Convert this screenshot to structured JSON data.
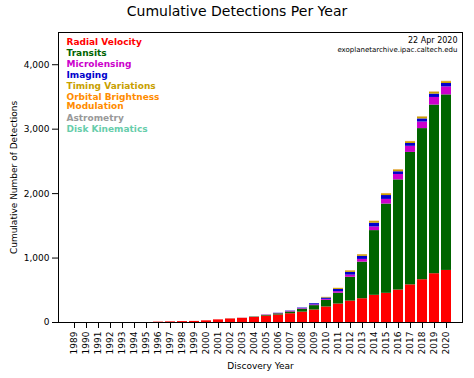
{
  "chart_data": {
    "type": "bar",
    "stacked": true,
    "title": "Cumulative Detections Per Year",
    "xlabel": "Discovery Year",
    "ylabel": "Cumulative Number of Detections",
    "annotations": [
      "22 Apr 2020",
      "exoplanetarchive.ipac.caltech.edu"
    ],
    "categories": [
      "1989",
      "1990",
      "1991",
      "1992",
      "1993",
      "1994",
      "1995",
      "1996",
      "1997",
      "1998",
      "1999",
      "2000",
      "2001",
      "2002",
      "2003",
      "2004",
      "2005",
      "2006",
      "2007",
      "2008",
      "2009",
      "2010",
      "2011",
      "2012",
      "2013",
      "2014",
      "2015",
      "2016",
      "2017",
      "2018",
      "2019",
      "2020"
    ],
    "series": [
      {
        "name": "Radial Velocity",
        "color": "#ff0000",
        "values": [
          0,
          0,
          0,
          0,
          0,
          0,
          0,
          6,
          10,
          14,
          17,
          26,
          41,
          55,
          65,
          79,
          99,
          116,
          136,
          161,
          194,
          241,
          287,
          332,
          369,
          422,
          453,
          504,
          584,
          664,
          757,
          808
        ]
      },
      {
        "name": "Transits",
        "color": "#006400",
        "values": [
          0,
          0,
          0,
          0,
          0,
          0,
          0,
          0,
          0,
          0,
          0,
          0,
          0,
          1,
          1,
          6,
          12,
          19,
          28,
          46,
          68,
          102,
          167,
          370,
          568,
          1004,
          1385,
          1709,
          2055,
          2345,
          2617,
          2724
        ]
      },
      {
        "name": "Microlensing",
        "color": "#cc00cc",
        "values": [
          0,
          0,
          0,
          0,
          0,
          0,
          0,
          0,
          0,
          0,
          0,
          0,
          0,
          0,
          1,
          1,
          5,
          6,
          9,
          9,
          12,
          16,
          25,
          33,
          42,
          57,
          72,
          84,
          95,
          102,
          118,
          124
        ]
      },
      {
        "name": "Imaging",
        "color": "#0000cc",
        "values": [
          0,
          0,
          0,
          0,
          0,
          0,
          0,
          0,
          0,
          0,
          0,
          0,
          0,
          0,
          0,
          0,
          1,
          3,
          5,
          8,
          17,
          21,
          34,
          43,
          48,
          58,
          60,
          42,
          44,
          48,
          52,
          53
        ]
      },
      {
        "name": "Timing Variations",
        "color": "#c8a000",
        "values": [
          0,
          0,
          0,
          0,
          0,
          0,
          0,
          0,
          0,
          0,
          0,
          0,
          0,
          0,
          0,
          0,
          0,
          0,
          0,
          0,
          0,
          10,
          16,
          20,
          22,
          25,
          26,
          26,
          26,
          27,
          27,
          27
        ]
      },
      {
        "name": "Orbital Brightness\nModulation",
        "color": "#ff8c00",
        "values": [
          0,
          0,
          0,
          0,
          0,
          0,
          0,
          0,
          0,
          0,
          0,
          0,
          0,
          0,
          0,
          0,
          0,
          0,
          0,
          0,
          0,
          0,
          2,
          4,
          4,
          5,
          5,
          5,
          5,
          5,
          5,
          5
        ]
      },
      {
        "name": "Astrometry",
        "color": "#999999",
        "values": [
          0,
          0,
          0,
          0,
          0,
          0,
          0,
          0,
          0,
          0,
          0,
          0,
          0,
          0,
          0,
          0,
          0,
          0,
          0,
          0,
          0,
          0,
          0,
          1,
          1,
          1,
          1,
          1,
          1,
          1,
          1,
          1
        ]
      },
      {
        "name": "Disk Kinematics",
        "color": "#66cdaa",
        "values": [
          0,
          0,
          0,
          0,
          0,
          0,
          0,
          0,
          0,
          0,
          0,
          0,
          0,
          0,
          0,
          0,
          0,
          0,
          0,
          0,
          0,
          0,
          0,
          0,
          0,
          0,
          0,
          0,
          0,
          1,
          1,
          1
        ]
      }
    ],
    "ylim": [
      0,
      4500
    ],
    "yticks": [
      0,
      1000,
      2000,
      3000,
      4000
    ],
    "grid": false,
    "legend": "upper left"
  }
}
